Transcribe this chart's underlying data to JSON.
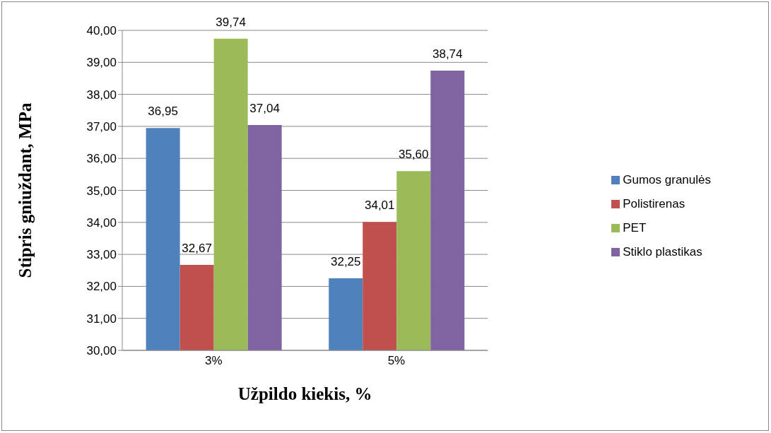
{
  "chart_data": {
    "type": "bar",
    "xlabel": "Užpildo kiekis, %",
    "ylabel": "Stipris gniuždant, MPa",
    "categories": [
      "3%",
      "5%"
    ],
    "series": [
      {
        "name": "Gumos granulės",
        "color": "#4f81bd",
        "values": [
          36.95,
          32.25
        ],
        "value_labels": [
          "36,95",
          "32,25"
        ]
      },
      {
        "name": "Polistirenas",
        "color": "#c0504d",
        "values": [
          32.67,
          34.01
        ],
        "value_labels": [
          "32,67",
          "34,01"
        ]
      },
      {
        "name": "PET",
        "color": "#9bbb59",
        "values": [
          39.74,
          35.6
        ],
        "value_labels": [
          "39,74",
          "35,60"
        ]
      },
      {
        "name": "Stiklo plastikas",
        "color": "#8064a2",
        "values": [
          37.04,
          38.74
        ],
        "value_labels": [
          "37,04",
          "38,74"
        ]
      }
    ],
    "ylim": [
      30,
      40
    ],
    "yticks": [
      {
        "value": 30,
        "label": "30,00"
      },
      {
        "value": 31,
        "label": "31,00"
      },
      {
        "value": 32,
        "label": "32,00"
      },
      {
        "value": 33,
        "label": "33,00"
      },
      {
        "value": 34,
        "label": "34,00"
      },
      {
        "value": 35,
        "label": "35,00"
      },
      {
        "value": 36,
        "label": "36,00"
      },
      {
        "value": 37,
        "label": "37,00"
      },
      {
        "value": 38,
        "label": "38,00"
      },
      {
        "value": 39,
        "label": "39,00"
      },
      {
        "value": 40,
        "label": "40,00"
      }
    ],
    "grid": "y",
    "legend": "right"
  }
}
